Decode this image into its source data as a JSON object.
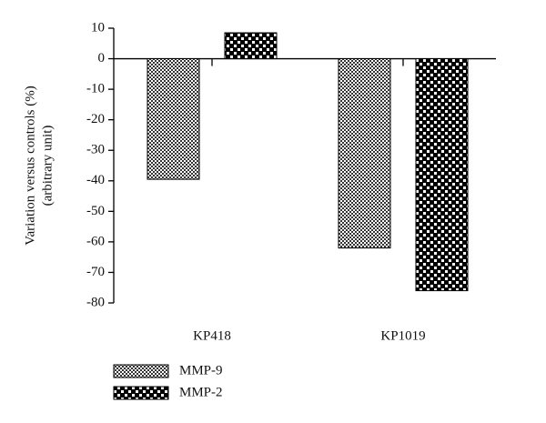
{
  "chart_data": {
    "type": "bar",
    "ylabel": [
      "Variation versus controls (%)",
      "(arbitrary unit)"
    ],
    "categories": [
      "KP418",
      "KP1019"
    ],
    "series": [
      {
        "name": "MMP-9",
        "color": "#333333",
        "pattern": "fine",
        "values": [
          -39.5,
          -62
        ]
      },
      {
        "name": "MMP-2",
        "color": "#000000",
        "pattern": "coarse",
        "values": [
          8.5,
          -76
        ]
      }
    ],
    "ylim": [
      -80,
      10
    ],
    "yticks": [
      -80,
      -70,
      -60,
      -50,
      -40,
      -30,
      -20,
      -10,
      0,
      10
    ],
    "legend": "bottom-left"
  }
}
